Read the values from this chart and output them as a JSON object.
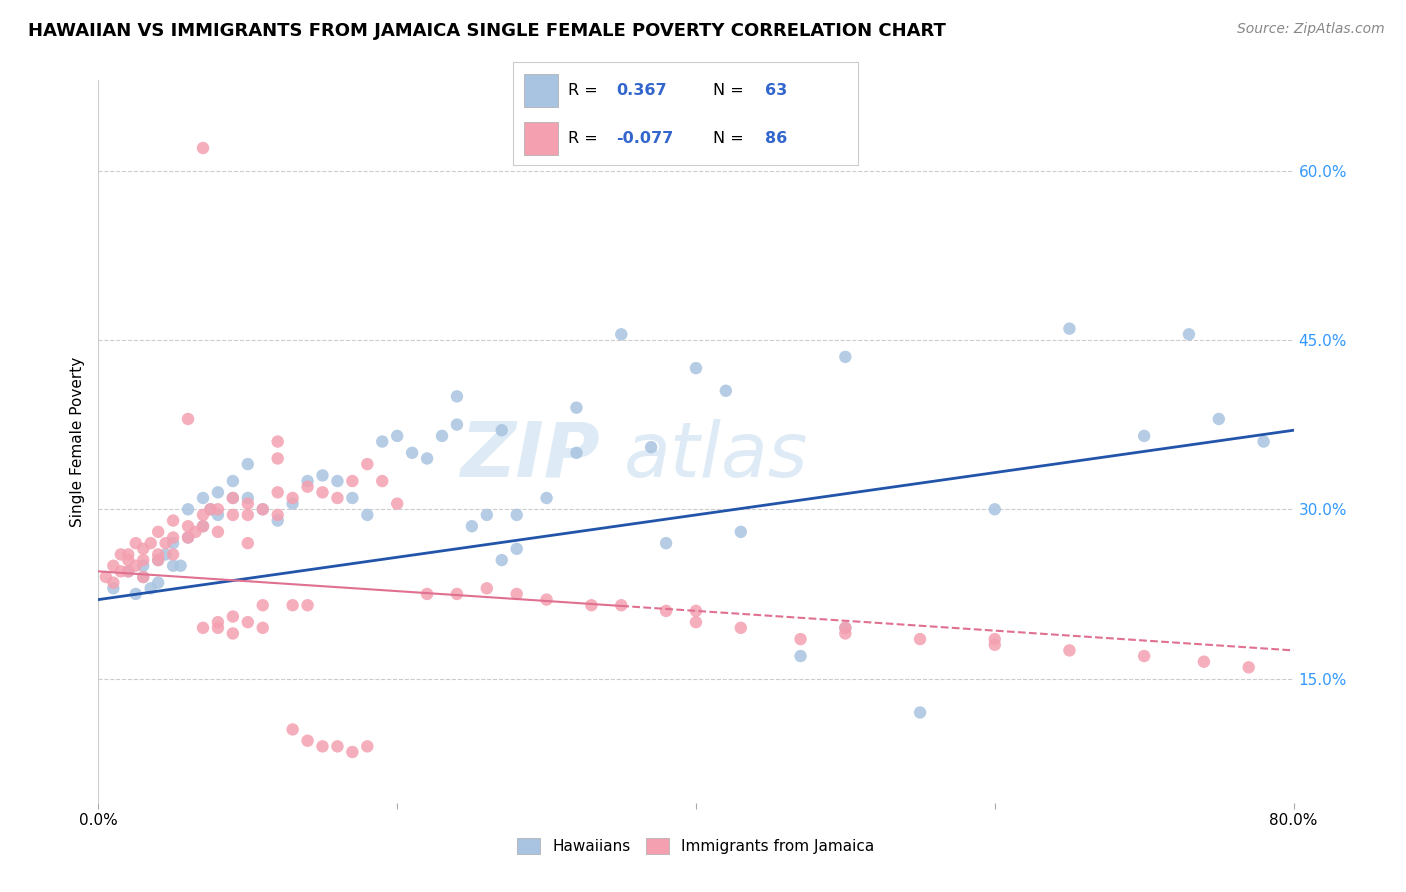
{
  "title": "HAWAIIAN VS IMMIGRANTS FROM JAMAICA SINGLE FEMALE POVERTY CORRELATION CHART",
  "source": "Source: ZipAtlas.com",
  "ylabel": "Single Female Poverty",
  "xlim": [
    0.0,
    0.8
  ],
  "ylim": [
    0.04,
    0.68
  ],
  "y_tick_values_right": [
    0.15,
    0.3,
    0.45,
    0.6
  ],
  "y_tick_labels_right": [
    "15.0%",
    "30.0%",
    "45.0%",
    "60.0%"
  ],
  "R_hawaiian": 0.367,
  "N_hawaiian": 63,
  "R_jamaican": -0.077,
  "N_jamaican": 86,
  "hawaiian_color": "#a8c4e0",
  "jamaican_color": "#f4a0b0",
  "line_hawaiian_color": "#2255aa",
  "line_jamaican_color": "#e07090",
  "legend_label_1": "Hawaiians",
  "legend_label_2": "Immigrants from Jamaica",
  "hawaiian_x": [
    0.01,
    0.02,
    0.025,
    0.03,
    0.03,
    0.035,
    0.04,
    0.04,
    0.045,
    0.05,
    0.05,
    0.055,
    0.06,
    0.06,
    0.07,
    0.07,
    0.075,
    0.08,
    0.08,
    0.09,
    0.09,
    0.1,
    0.1,
    0.11,
    0.12,
    0.13,
    0.14,
    0.15,
    0.16,
    0.17,
    0.18,
    0.19,
    0.2,
    0.21,
    0.22,
    0.23,
    0.24,
    0.25,
    0.26,
    0.27,
    0.28,
    0.3,
    0.32,
    0.35,
    0.37,
    0.4,
    0.43,
    0.47,
    0.5,
    0.55,
    0.6,
    0.65,
    0.7,
    0.73,
    0.75,
    0.78,
    0.5,
    0.38,
    0.27,
    0.32,
    0.24,
    0.28,
    0.42
  ],
  "hawaiian_y": [
    0.23,
    0.245,
    0.225,
    0.24,
    0.25,
    0.23,
    0.235,
    0.255,
    0.26,
    0.25,
    0.27,
    0.25,
    0.275,
    0.3,
    0.285,
    0.31,
    0.3,
    0.295,
    0.315,
    0.31,
    0.325,
    0.31,
    0.34,
    0.3,
    0.29,
    0.305,
    0.325,
    0.33,
    0.325,
    0.31,
    0.295,
    0.36,
    0.365,
    0.35,
    0.345,
    0.365,
    0.375,
    0.285,
    0.295,
    0.37,
    0.295,
    0.31,
    0.35,
    0.455,
    0.355,
    0.425,
    0.28,
    0.17,
    0.435,
    0.12,
    0.3,
    0.46,
    0.365,
    0.455,
    0.38,
    0.36,
    0.195,
    0.27,
    0.255,
    0.39,
    0.4,
    0.265,
    0.405
  ],
  "jamaican_x": [
    0.005,
    0.01,
    0.01,
    0.015,
    0.015,
    0.02,
    0.02,
    0.02,
    0.025,
    0.025,
    0.03,
    0.03,
    0.03,
    0.035,
    0.04,
    0.04,
    0.04,
    0.045,
    0.05,
    0.05,
    0.05,
    0.06,
    0.06,
    0.065,
    0.07,
    0.07,
    0.075,
    0.08,
    0.08,
    0.09,
    0.09,
    0.1,
    0.1,
    0.11,
    0.12,
    0.12,
    0.13,
    0.14,
    0.15,
    0.16,
    0.17,
    0.18,
    0.19,
    0.2,
    0.22,
    0.24,
    0.26,
    0.28,
    0.3,
    0.33,
    0.35,
    0.38,
    0.4,
    0.43,
    0.47,
    0.5,
    0.55,
    0.6,
    0.65,
    0.7,
    0.74,
    0.77,
    0.06,
    0.07,
    0.08,
    0.09,
    0.1,
    0.11,
    0.12,
    0.13,
    0.14,
    0.15,
    0.16,
    0.17,
    0.18,
    0.07,
    0.08,
    0.09,
    0.1,
    0.11,
    0.12,
    0.13,
    0.14,
    0.4,
    0.5,
    0.6
  ],
  "jamaican_y": [
    0.24,
    0.25,
    0.235,
    0.245,
    0.26,
    0.245,
    0.26,
    0.255,
    0.25,
    0.27,
    0.255,
    0.24,
    0.265,
    0.27,
    0.26,
    0.255,
    0.28,
    0.27,
    0.275,
    0.29,
    0.26,
    0.285,
    0.275,
    0.28,
    0.295,
    0.285,
    0.3,
    0.3,
    0.28,
    0.295,
    0.31,
    0.305,
    0.295,
    0.3,
    0.315,
    0.295,
    0.31,
    0.32,
    0.315,
    0.31,
    0.325,
    0.34,
    0.325,
    0.305,
    0.225,
    0.225,
    0.23,
    0.225,
    0.22,
    0.215,
    0.215,
    0.21,
    0.2,
    0.195,
    0.185,
    0.195,
    0.185,
    0.18,
    0.175,
    0.17,
    0.165,
    0.16,
    0.38,
    0.62,
    0.2,
    0.205,
    0.27,
    0.215,
    0.36,
    0.105,
    0.095,
    0.09,
    0.09,
    0.085,
    0.09,
    0.195,
    0.195,
    0.19,
    0.2,
    0.195,
    0.345,
    0.215,
    0.215,
    0.21,
    0.19,
    0.185
  ]
}
